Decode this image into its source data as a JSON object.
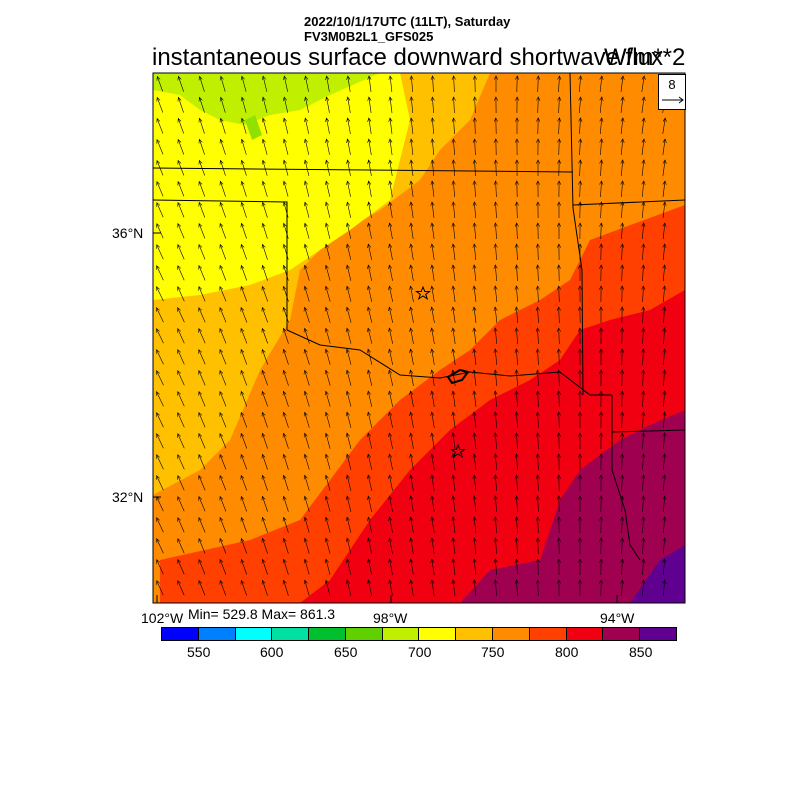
{
  "header": {
    "line1": "2022/10/1/17UTC (11LT), Saturday",
    "line2": "FV3M0B2L1_GFS025",
    "title": "instantaneous surface downward shortwave flux",
    "units": "W/m**2"
  },
  "ref_vector": {
    "value": "8"
  },
  "axes": {
    "lat_labels": [
      "36°N",
      "32°N"
    ],
    "lon_labels": [
      "102°W",
      "98°W",
      "94°W"
    ]
  },
  "stats": {
    "text": "Min= 529.8 Max= 861.3"
  },
  "colorbar": {
    "ticks": [
      "550",
      "600",
      "650",
      "700",
      "750",
      "800",
      "850"
    ],
    "colors": [
      "#0000ff",
      "#0080ff",
      "#00ffff",
      "#00e0a0",
      "#00c030",
      "#60d000",
      "#c0f000",
      "#ffff00",
      "#ffc000",
      "#ff8c00",
      "#ff4000",
      "#f00010",
      "#a00050",
      "#600090"
    ]
  },
  "markers": [
    "star",
    "star"
  ],
  "icons": {
    "star": "star-icon",
    "ref_arrow": "arrow-right-icon"
  }
}
